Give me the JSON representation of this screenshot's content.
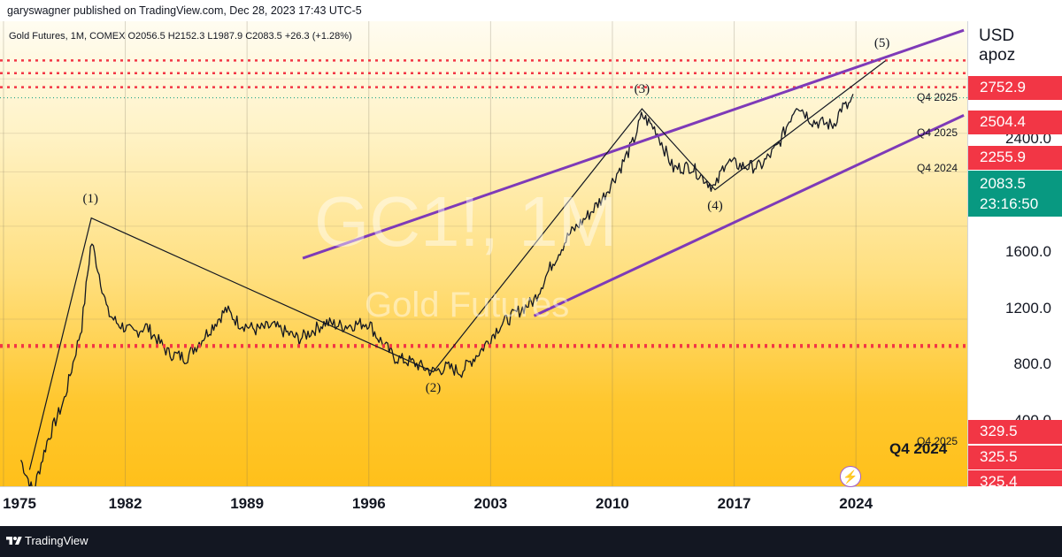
{
  "header": {
    "publisher_line": "garyswagner published on TradingView.com, Dec 28, 2023 17:43 UTC-5"
  },
  "legend": {
    "ohlc_line": "Gold Futures, 1M, COMEX  O2056.5  H2152.3  L1987.9  C2083.5  +26.3 (+1.28%)"
  },
  "watermark": {
    "symbol": "GC1!, 1M",
    "name": "Gold Futures"
  },
  "price_axis": {
    "currency": "USD",
    "label": "apoz",
    "ticks": [
      "2400.0",
      "1600.0",
      "1200.0",
      "800.0",
      "400.0"
    ]
  },
  "time_axis": {
    "ticks": [
      "1975",
      "1982",
      "1989",
      "1996",
      "2003",
      "2010",
      "2017",
      "2024"
    ]
  },
  "price_badges": [
    {
      "id": "a",
      "value": "2752.9",
      "color": "#f23645"
    },
    {
      "id": "b",
      "value": "2504.4",
      "color": "#f23645"
    },
    {
      "id": "c",
      "value": "2255.9",
      "color": "#f23645"
    },
    {
      "id": "d",
      "value": "329.5",
      "color": "#f23645"
    },
    {
      "id": "e",
      "value": "325.5",
      "color": "#f23645"
    },
    {
      "id": "f",
      "value": "325.4",
      "color": "#f23645"
    }
  ],
  "last_price": {
    "value": "2083.5",
    "countdown": "23:16:50",
    "color": "#089981"
  },
  "level_labels": [
    "Q4 2025",
    "Q4 2025",
    "Q4 2024",
    "Q4 2025",
    "Q4 2024"
  ],
  "wave_labels": [
    "(1)",
    "(2)",
    "(3)",
    "(4)",
    "(5)"
  ],
  "footer": {
    "brand": "TradingView"
  },
  "colors": {
    "channel": "#7e3ab8",
    "levels": "#f23645",
    "candles": "#131722"
  },
  "chart_data": {
    "type": "line",
    "title": "Gold Futures, 1M, COMEX",
    "x_unit": "year",
    "y_scale": "log",
    "xlim": [
      1974.8,
      2030.4
    ],
    "ylim": [
      115,
      3690
    ],
    "series": [
      {
        "x": [
          1976.0,
          1976.7,
          1977.5,
          1978.5,
          1979.5,
          1980.05,
          1980.5,
          1981.0,
          1981.5,
          1982.5,
          1983.2,
          1984.5,
          1985.5,
          1986.5,
          1987.8,
          1988.5,
          1989.5,
          1990.5,
          1992.0,
          1993.5,
          1994.5,
          1996.0,
          1996.5,
          1997.5,
          1998.5,
          1999.7,
          2000.5,
          2001.3,
          2002.5,
          2003.5,
          2004.5,
          2005.5,
          2006.5,
          2007.5,
          2008.7,
          2009.5,
          2010.5,
          2011.2,
          2011.7,
          2012.5,
          2013.5,
          2014.5,
          2015.9,
          2016.5,
          2017.5,
          2018.5,
          2019.5,
          2020.6,
          2021.5,
          2022.7,
          2023.2,
          2023.5,
          2023.9
        ],
        "y": [
          140,
          110,
          160,
          220,
          380,
          720,
          560,
          420,
          390,
          360,
          380,
          310,
          300,
          350,
          430,
          390,
          370,
          380,
          345,
          390,
          380,
          390,
          350,
          300,
          290,
          270,
          280,
          270,
          320,
          380,
          420,
          460,
          600,
          750,
          880,
          1000,
          1250,
          1500,
          1830,
          1640,
          1230,
          1250,
          1060,
          1300,
          1250,
          1250,
          1450,
          2000,
          1750,
          1700,
          1950,
          1950,
          2083.5
        ]
      }
    ],
    "levels": [
      {
        "value": 2752.9,
        "label": "Q4 2025"
      },
      {
        "value": 2504.4,
        "label": "Q4 2025"
      },
      {
        "value": 2255.9,
        "label": "Q4 2024"
      },
      {
        "value": 329.5,
        "label": "Q4 2025"
      },
      {
        "value": 325.5,
        "label": "Q4 2024"
      },
      {
        "value": 325.4,
        "label": ""
      }
    ],
    "channel_upper": [
      [
        1992.2,
        630
      ],
      [
        2030.2,
        3450
      ]
    ],
    "channel_lower": [
      [
        2005.5,
        410
      ],
      [
        2030.2,
        1830
      ]
    ],
    "wave_path": [
      [
        1976.5,
        130
      ],
      [
        1980.05,
        850
      ],
      [
        1999.7,
        270
      ],
      [
        2011.7,
        1920
      ],
      [
        2015.9,
        1050
      ],
      [
        2025.7,
        2750
      ]
    ],
    "waves": [
      {
        "label": "(1)",
        "x": 1980.0,
        "y": 850
      },
      {
        "label": "(2)",
        "x": 1999.7,
        "y": 270
      },
      {
        "label": "(3)",
        "x": 2011.7,
        "y": 1920
      },
      {
        "label": "(4)",
        "x": 2015.9,
        "y": 1050
      },
      {
        "label": "(5)",
        "x": 2025.5,
        "y": 2750
      }
    ],
    "grid": true
  }
}
